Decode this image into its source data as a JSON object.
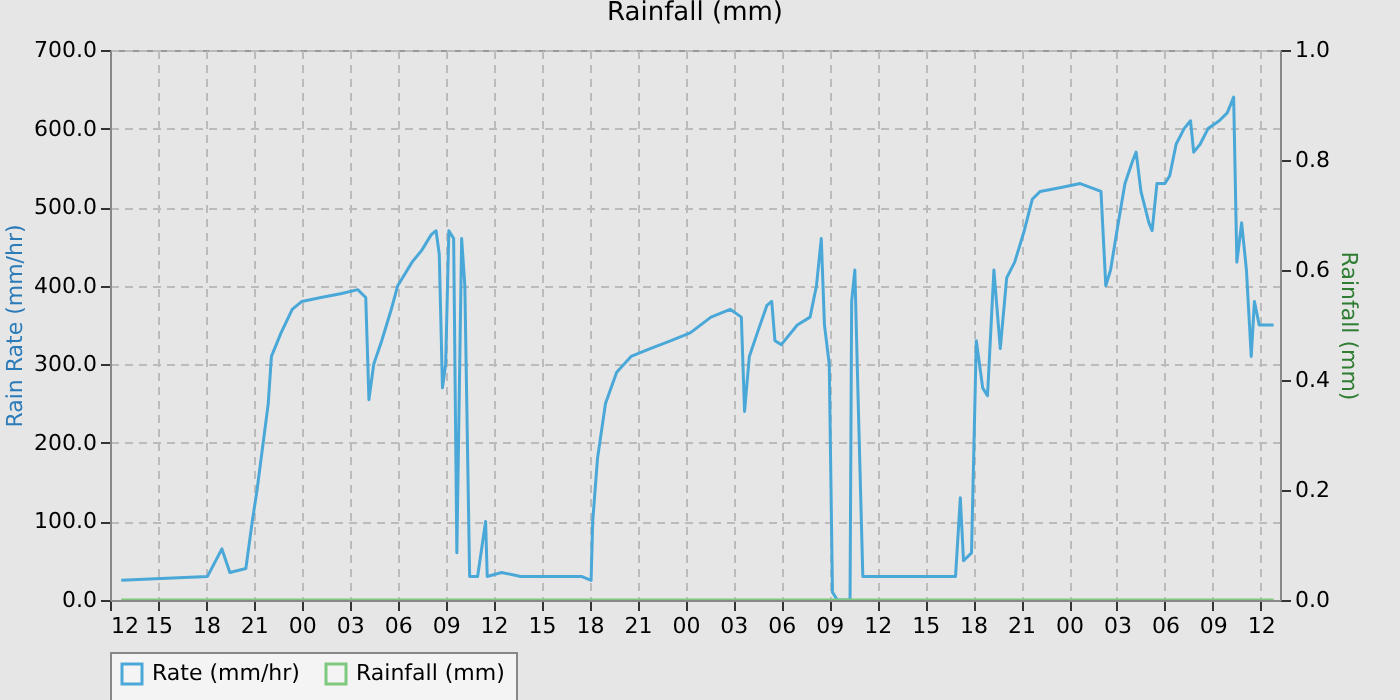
{
  "chart_data": {
    "type": "line",
    "title": "Rainfall (mm)",
    "ylabel": "Rain Rate (mm/hr)",
    "y2label": "Rainfall (mm)",
    "xlim": [
      12,
      85.2
    ],
    "xticks": [
      {
        "value": 12,
        "label": "12"
      },
      {
        "value": 15,
        "label": "15"
      },
      {
        "value": 18,
        "label": "18"
      },
      {
        "value": 21,
        "label": "21"
      },
      {
        "value": 24,
        "label": "00"
      },
      {
        "value": 27,
        "label": "03"
      },
      {
        "value": 30,
        "label": "06"
      },
      {
        "value": 33,
        "label": "09"
      },
      {
        "value": 36,
        "label": "12"
      },
      {
        "value": 39,
        "label": "15"
      },
      {
        "value": 42,
        "label": "18"
      },
      {
        "value": 45,
        "label": "21"
      },
      {
        "value": 48,
        "label": "00"
      },
      {
        "value": 51,
        "label": "03"
      },
      {
        "value": 54,
        "label": "06"
      },
      {
        "value": 57,
        "label": "09"
      },
      {
        "value": 60,
        "label": "12"
      },
      {
        "value": 63,
        "label": "15"
      },
      {
        "value": 66,
        "label": "18"
      },
      {
        "value": 69,
        "label": "21"
      },
      {
        "value": 72,
        "label": "00"
      },
      {
        "value": 75,
        "label": "03"
      },
      {
        "value": 78,
        "label": "06"
      },
      {
        "value": 81,
        "label": "09"
      },
      {
        "value": 84,
        "label": "12"
      }
    ],
    "ylim": [
      0,
      700
    ],
    "yticks": [
      {
        "value": 0,
        "label": "0.0"
      },
      {
        "value": 100,
        "label": "100.0"
      },
      {
        "value": 200,
        "label": "200.0"
      },
      {
        "value": 300,
        "label": "300.0"
      },
      {
        "value": 400,
        "label": "400.0"
      },
      {
        "value": 500,
        "label": "500.0"
      },
      {
        "value": 600,
        "label": "600.0"
      },
      {
        "value": 700,
        "label": "700.0"
      }
    ],
    "y2lim": [
      0,
      1
    ],
    "y2ticks": [
      {
        "value": 0,
        "label": "0.0"
      },
      {
        "value": 0.2,
        "label": "0.2"
      },
      {
        "value": 0.4,
        "label": "0.4"
      },
      {
        "value": 0.6,
        "label": "0.6"
      },
      {
        "value": 0.8,
        "label": "0.8"
      },
      {
        "value": 1,
        "label": "1.0"
      }
    ],
    "grid": true,
    "legend": "bottom",
    "series": [
      {
        "name": "Rate (mm/hr)",
        "color": "#4aa8d8",
        "type": "line",
        "x": [
          12.7,
          18.1,
          19.0,
          19.5,
          20.5,
          20.9,
          21.2,
          21.9,
          22.1,
          22.7,
          23.4,
          24.0,
          25.2,
          26.5,
          27.5,
          28.0,
          28.2,
          28.5,
          29.0,
          29.6,
          30.0,
          30.9,
          31.5,
          32.1,
          32.4,
          32.6,
          32.8,
          33.0,
          33.2,
          33.5,
          33.7,
          34.0,
          34.2,
          34.5,
          35.0,
          35.5,
          35.6,
          36.5,
          37.7,
          41.5,
          42.1,
          42.2,
          42.5,
          43.0,
          43.7,
          44.6,
          45.8,
          47.1,
          48.3,
          49.6,
          50.8,
          51.5,
          51.7,
          52.0,
          52.5,
          53.1,
          53.4,
          53.6,
          54.0,
          55.0,
          55.8,
          56.2,
          56.5,
          56.7,
          57.0,
          57.2,
          57.5,
          58.3,
          58.4,
          58.6,
          58.8,
          59.1,
          60.2,
          62.7,
          64.9,
          65.2,
          65.4,
          65.9,
          66.2,
          66.6,
          66.9,
          67.3,
          67.7,
          68.1,
          68.6,
          69.2,
          69.7,
          70.2,
          71.5,
          72.7,
          74.0,
          74.3,
          74.6,
          75.0,
          75.5,
          76.0,
          76.2,
          76.5,
          77.0,
          77.2,
          77.5,
          78.0,
          78.3,
          78.7,
          79.2,
          79.6,
          79.8,
          80.2,
          80.7,
          81.4,
          81.9,
          82.3,
          82.5,
          82.8,
          83.1,
          83.4,
          83.6,
          83.9,
          84.8
        ],
        "values": [
          25,
          30,
          65,
          35,
          40,
          100,
          140,
          250,
          310,
          340,
          370,
          380,
          385,
          390,
          395,
          385,
          255,
          300,
          330,
          370,
          400,
          430,
          445,
          465,
          470,
          440,
          270,
          300,
          470,
          460,
          60,
          460,
          400,
          30,
          30,
          100,
          30,
          35,
          30,
          30,
          25,
          100,
          180,
          250,
          290,
          310,
          320,
          330,
          340,
          360,
          370,
          360,
          240,
          310,
          340,
          375,
          380,
          330,
          325,
          350,
          360,
          400,
          460,
          350,
          300,
          10,
          0,
          0,
          380,
          420,
          260,
          30,
          30,
          30,
          30,
          130,
          50,
          60,
          330,
          270,
          260,
          420,
          320,
          410,
          430,
          470,
          510,
          520,
          525,
          530,
          520,
          400,
          420,
          470,
          530,
          560,
          570,
          520,
          480,
          470,
          530,
          530,
          540,
          580,
          600,
          610,
          570,
          580,
          600,
          610,
          620,
          640,
          430,
          480,
          420,
          310,
          380,
          350,
          350
        ]
      },
      {
        "name": "Rainfall (mm)",
        "color": "#7fc97f",
        "type": "line",
        "axis": "y2",
        "x": [
          12.7,
          84.8
        ],
        "values": [
          0,
          0
        ]
      }
    ]
  }
}
